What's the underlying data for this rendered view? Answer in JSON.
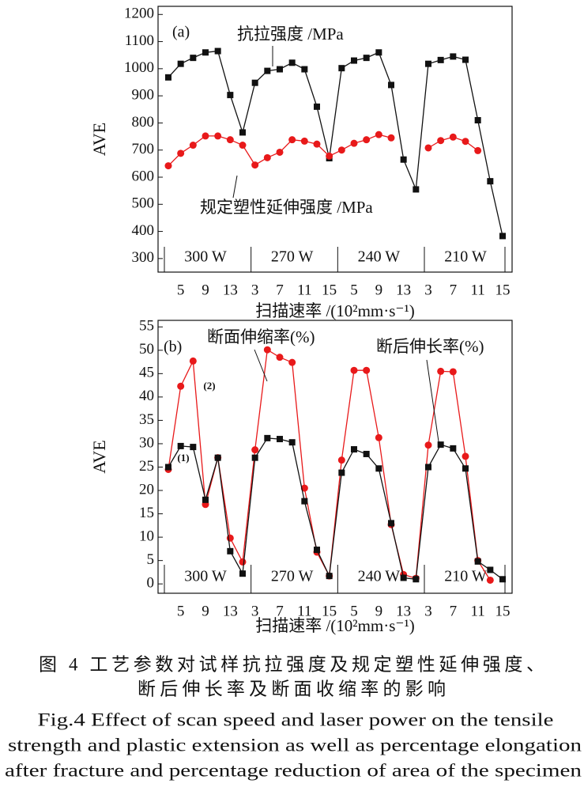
{
  "chart_data": [
    {
      "type": "line",
      "panel_label": "(a)",
      "y_label": "AVE",
      "x_label": "扫描速率 /(10²mm·s⁻¹)",
      "categories": [
        null,
        "5",
        null,
        "9",
        null,
        "13",
        null,
        "3",
        null,
        "7",
        null,
        "11",
        null,
        "15",
        null,
        "5",
        null,
        "9",
        null,
        "13",
        null,
        "3",
        null,
        "7",
        null,
        "11",
        null,
        "15"
      ],
      "groups": [
        "300 W",
        "270 W",
        "240 W",
        "210 W"
      ],
      "ylim": [
        250,
        1230
      ],
      "yticks": [
        300,
        400,
        500,
        600,
        700,
        800,
        900,
        1000,
        1100,
        1200
      ],
      "series": [
        {
          "name": "抗拉强度 /MPa",
          "color": "#111111",
          "marker": "square",
          "values": [
            968,
            1018,
            1040,
            1060,
            1065,
            903,
            765,
            948,
            992,
            998,
            1022,
            998,
            860,
            670,
            1002,
            1030,
            1040,
            1060,
            940,
            665,
            555,
            1018,
            1032,
            1045,
            1033,
            810,
            585,
            383
          ]
        },
        {
          "name": "规定塑性延伸强度 /MPa",
          "color": "#e8191a",
          "marker": "circle",
          "values": [
            642,
            688,
            718,
            752,
            752,
            738,
            718,
            645,
            672,
            692,
            738,
            733,
            722,
            678,
            700,
            725,
            738,
            757,
            745,
            null,
            null,
            708,
            735,
            748,
            732,
            698,
            null,
            null
          ]
        }
      ]
    },
    {
      "type": "line",
      "panel_label": "(b)",
      "y_label": "AVE",
      "x_label": "扫描速率 /(10²mm·s⁻¹)",
      "categories": [
        null,
        "5",
        null,
        "9",
        null,
        "13",
        null,
        "3",
        null,
        "7",
        null,
        "11",
        null,
        "15",
        null,
        "5",
        null,
        "9",
        null,
        "13",
        null,
        "3",
        null,
        "7",
        null,
        "11",
        null,
        "15"
      ],
      "groups": [
        "300 W",
        "270 W",
        "240 W",
        "210 W"
      ],
      "ylim": [
        -2,
        56.4
      ],
      "yticks": [
        0,
        5,
        10,
        15,
        20,
        25,
        30,
        35,
        40,
        45,
        50,
        55
      ],
      "annotations": [
        "(1)",
        "(2)"
      ],
      "series": [
        {
          "name": "断面伸缩率(%)",
          "color": "#e8191a",
          "marker": "circle",
          "values": [
            24.5,
            42.3,
            47.7,
            17,
            27,
            9.8,
            4.7,
            28.7,
            50.1,
            48.5,
            47.4,
            20.5,
            6.8,
            1.7,
            26.5,
            45.7,
            45.7,
            31.3,
            12.7,
            2,
            1.2,
            29.7,
            45.5,
            45.4,
            27.3,
            5,
            0.8,
            null
          ]
        },
        {
          "name": "断后伸长率(%)",
          "color": "#111111",
          "marker": "square",
          "values": [
            25,
            29.5,
            29.3,
            18,
            27,
            7,
            2.2,
            27,
            31.2,
            31,
            30.3,
            17.7,
            7.3,
            1.7,
            23.8,
            28.8,
            27.8,
            24.7,
            13,
            1.3,
            1,
            25,
            29.8,
            29,
            24.7,
            4.8,
            3,
            1
          ]
        }
      ]
    }
  ],
  "caption": {
    "zh": [
      "图 4  工艺参数对试样抗拉强度及规定塑性延伸强度、",
      "断后伸长率及断面收缩率的影响"
    ],
    "en": [
      "Fig.4  Effect of scan speed and laser power on the tensile",
      "strength and plastic extension as well as percentage elongation",
      "after fracture and percentage reduction of area of the specimen"
    ]
  }
}
